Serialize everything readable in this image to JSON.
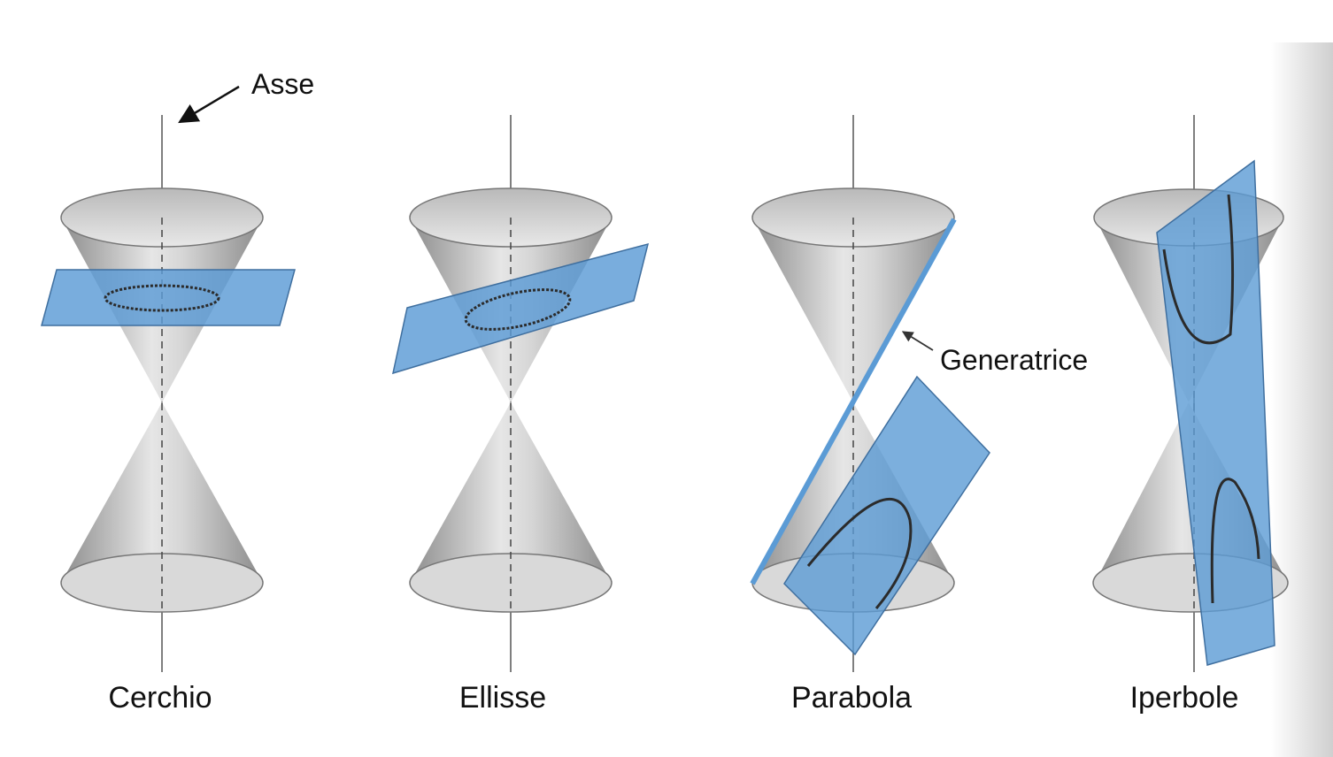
{
  "annotations": {
    "axis": "Asse",
    "generatrix": "Generatrice"
  },
  "sections": [
    {
      "label": "Cerchio"
    },
    {
      "label": "Ellisse"
    },
    {
      "label": "Parabola"
    },
    {
      "label": "Iperbole"
    }
  ],
  "colors": {
    "plane": "#5b9bd5",
    "plane_edge": "#3f6f9f",
    "cone_dark": "#8a8a8a",
    "cone_light": "#e9e9e9",
    "curve": "#2b2b2b",
    "right_edge_shadow": "#d7d7d7"
  }
}
